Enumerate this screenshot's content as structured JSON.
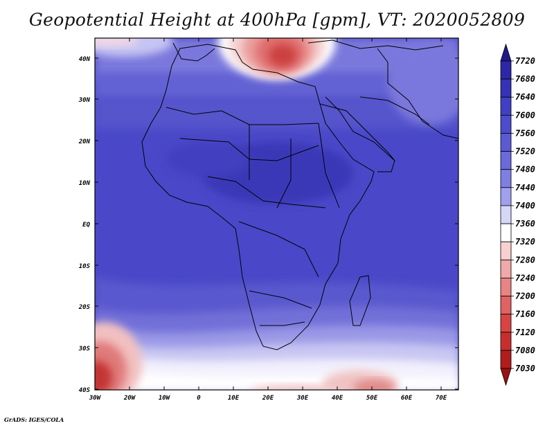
{
  "title": "Geopotential Height at 400hPa [gpm], VT: 2020052809",
  "credit": "GrADS: IGES/COLA",
  "map": {
    "lat_labels": [
      "40N",
      "30N",
      "20N",
      "10N",
      "EQ",
      "10S",
      "20S",
      "30S",
      "40S"
    ],
    "lon_labels": [
      "30W",
      "20W",
      "10W",
      "0",
      "10E",
      "20E",
      "30E",
      "40E",
      "50E",
      "60E",
      "70E"
    ]
  },
  "colorbar": {
    "levels": [
      "7720",
      "7680",
      "7640",
      "7600",
      "7560",
      "7520",
      "7480",
      "7440",
      "7400",
      "7360",
      "7320",
      "7280",
      "7240",
      "7200",
      "7160",
      "7120",
      "7080",
      "7030"
    ],
    "colors": [
      "#1f1a8a",
      "#2b27a8",
      "#3532b8",
      "#4040c4",
      "#4c4ccc",
      "#5a5ad4",
      "#6a6adc",
      "#7e7ee3",
      "#a0a0ee",
      "#d6d6f7",
      "#ffffff",
      "#f7d0d0",
      "#f0a8a8",
      "#e88484",
      "#e06262",
      "#d84444",
      "#c82e2e",
      "#b21c1c",
      "#9a1010"
    ]
  }
}
